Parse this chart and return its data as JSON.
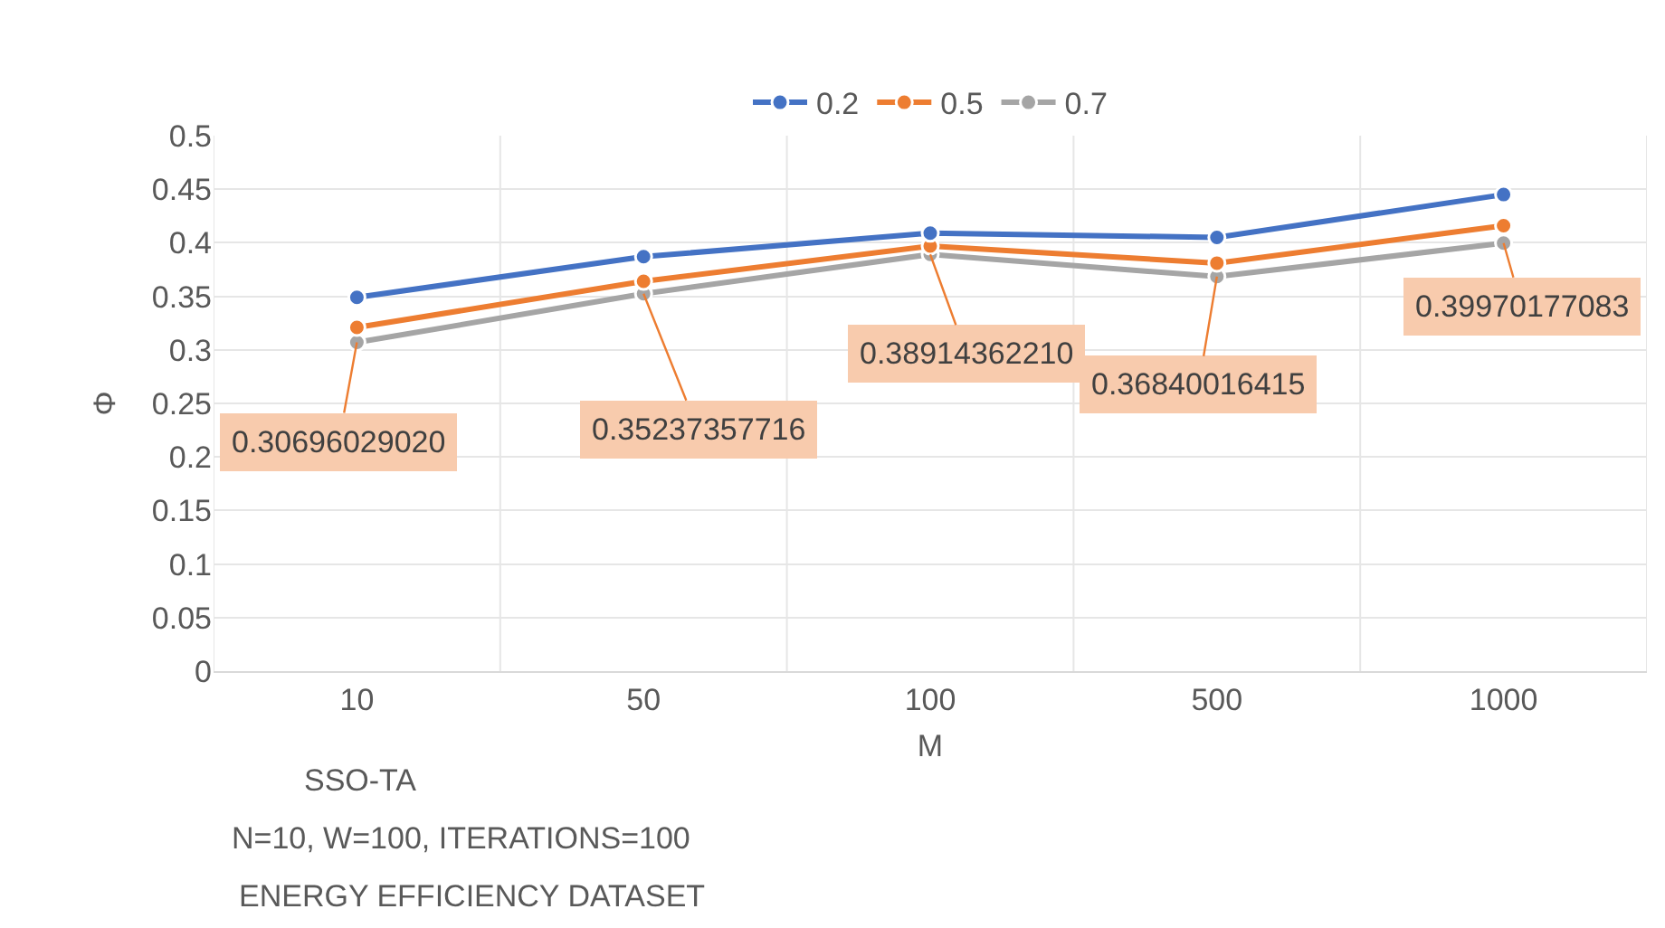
{
  "chart_data": {
    "type": "line",
    "categories": [
      "10",
      "50",
      "100",
      "500",
      "1000"
    ],
    "xlabel": "M",
    "ylabel": "Φ",
    "series": [
      {
        "name": "0.2",
        "color": "#4472c4",
        "values": [
          0.349,
          0.387,
          0.409,
          0.405,
          0.445
        ]
      },
      {
        "name": "0.5",
        "color": "#ed7d31",
        "values": [
          0.321,
          0.364,
          0.397,
          0.381,
          0.416
        ]
      },
      {
        "name": "0.7",
        "color": "#a5a5a5",
        "values": [
          0.3069602902,
          0.35237357716,
          0.3891436221,
          0.36840016415,
          0.39970177083
        ],
        "value_labels": [
          "0.30696029020",
          "0.35237357716",
          "0.38914362210",
          "0.36840016415",
          "0.39970177083"
        ]
      }
    ],
    "ylim": [
      0,
      0.5
    ],
    "yticks": [
      0,
      {
        "value": 0.05,
        "label": "0.05"
      },
      {
        "value": 0.1,
        "label": "0.1"
      },
      {
        "value": 0.15,
        "label": "0.15"
      },
      {
        "value": 0.2,
        "label": "0.2"
      },
      {
        "value": 0.25,
        "label": "0.25"
      },
      {
        "value": 0.3,
        "label": "0.3"
      },
      {
        "value": 0.35,
        "label": "0.35"
      },
      {
        "value": 0.4,
        "label": "0.4"
      },
      {
        "value": 0.45,
        "label": "0.45"
      },
      {
        "value": 0.5,
        "label": "0.5"
      }
    ],
    "grid": true,
    "legend": "top",
    "marker": "circle",
    "line_style": "solid",
    "annotations": [
      "SSO-TA",
      "N=10, W=100, ITERATIONS=100",
      "ENERGY EFFICIENCY DATASET"
    ]
  }
}
